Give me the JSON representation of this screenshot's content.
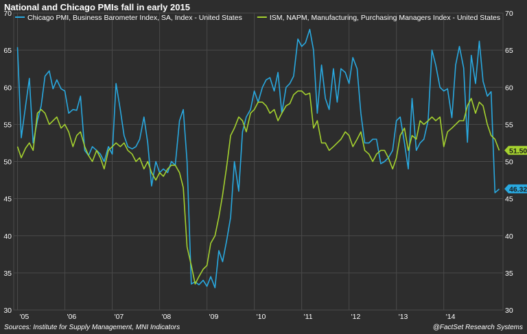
{
  "title": "National and Chicago PMIs fall in early 2015",
  "source": "Sources: Institute for Supply Management, MNI Indicators",
  "credit": "@FactSet Research Systems",
  "chart_data": {
    "type": "line",
    "xlim": [
      2004.92,
      2015.25
    ],
    "ylim": [
      30,
      70
    ],
    "y_ticks": [
      30,
      35,
      40,
      45,
      50,
      55,
      60,
      65,
      70
    ],
    "x_ticks": [
      {
        "label": "'05",
        "x": 2005.0
      },
      {
        "label": "'06",
        "x": 2006.0
      },
      {
        "label": "'07",
        "x": 2007.0
      },
      {
        "label": "'08",
        "x": 2008.0
      },
      {
        "label": "'09",
        "x": 2009.0
      },
      {
        "label": "'10",
        "x": 2010.0
      },
      {
        "label": "'11",
        "x": 2011.0
      },
      {
        "label": "'12",
        "x": 2012.0
      },
      {
        "label": "'13",
        "x": 2013.0
      },
      {
        "label": "'14",
        "x": 2014.0
      }
    ],
    "grid": true,
    "legend_position": "top-left",
    "series": [
      {
        "name": "Chicago PMI, Business Barometer Index, SA, Index - United States",
        "color": "#29a9e0",
        "end_label": "46.32",
        "points": [
          [
            2005.0,
            65.4
          ],
          [
            2005.08,
            53.2
          ],
          [
            2005.17,
            57.5
          ],
          [
            2005.25,
            61.2
          ],
          [
            2005.33,
            52.5
          ],
          [
            2005.42,
            55.5
          ],
          [
            2005.5,
            57.5
          ],
          [
            2005.58,
            61.5
          ],
          [
            2005.67,
            62.2
          ],
          [
            2005.75,
            59.8
          ],
          [
            2005.83,
            61.0
          ],
          [
            2005.92,
            59.8
          ],
          [
            2006.0,
            59.5
          ],
          [
            2006.08,
            56.5
          ],
          [
            2006.17,
            57.0
          ],
          [
            2006.25,
            56.9
          ],
          [
            2006.33,
            58.8
          ],
          [
            2006.42,
            51.5
          ],
          [
            2006.5,
            50.8
          ],
          [
            2006.58,
            52.0
          ],
          [
            2006.67,
            51.5
          ],
          [
            2006.75,
            51.0
          ],
          [
            2006.83,
            50.0
          ],
          [
            2006.92,
            52.0
          ],
          [
            2007.0,
            51.0
          ],
          [
            2007.08,
            60.5
          ],
          [
            2007.17,
            57.0
          ],
          [
            2007.25,
            53.5
          ],
          [
            2007.33,
            52.0
          ],
          [
            2007.42,
            51.7
          ],
          [
            2007.5,
            52.0
          ],
          [
            2007.58,
            53.0
          ],
          [
            2007.67,
            56.0
          ],
          [
            2007.75,
            52.5
          ],
          [
            2007.83,
            46.7
          ],
          [
            2007.92,
            50.0
          ],
          [
            2008.0,
            48.5
          ],
          [
            2008.08,
            49.0
          ],
          [
            2008.17,
            48.5
          ],
          [
            2008.25,
            50.0
          ],
          [
            2008.33,
            49.5
          ],
          [
            2008.42,
            55.5
          ],
          [
            2008.5,
            57.0
          ],
          [
            2008.58,
            50.0
          ],
          [
            2008.67,
            33.5
          ],
          [
            2008.75,
            33.8
          ],
          [
            2008.83,
            33.4
          ],
          [
            2008.92,
            34.0
          ],
          [
            2009.0,
            33.2
          ],
          [
            2009.08,
            34.5
          ],
          [
            2009.17,
            33.0
          ],
          [
            2009.25,
            38.0
          ],
          [
            2009.33,
            36.5
          ],
          [
            2009.42,
            39.5
          ],
          [
            2009.5,
            42.5
          ],
          [
            2009.58,
            50.0
          ],
          [
            2009.67,
            46.0
          ],
          [
            2009.75,
            54.0
          ],
          [
            2009.83,
            56.0
          ],
          [
            2009.92,
            57.0
          ],
          [
            2010.0,
            59.5
          ],
          [
            2010.08,
            58.0
          ],
          [
            2010.17,
            60.0
          ],
          [
            2010.25,
            61.0
          ],
          [
            2010.33,
            61.3
          ],
          [
            2010.42,
            59.5
          ],
          [
            2010.5,
            62.0
          ],
          [
            2010.58,
            56.5
          ],
          [
            2010.67,
            60.0
          ],
          [
            2010.75,
            60.5
          ],
          [
            2010.83,
            61.5
          ],
          [
            2010.92,
            66.5
          ],
          [
            2011.0,
            65.5
          ],
          [
            2011.08,
            66.0
          ],
          [
            2011.17,
            67.8
          ],
          [
            2011.25,
            65.0
          ],
          [
            2011.33,
            56.5
          ],
          [
            2011.42,
            63.0
          ],
          [
            2011.5,
            58.5
          ],
          [
            2011.58,
            57.0
          ],
          [
            2011.67,
            62.5
          ],
          [
            2011.75,
            58.0
          ],
          [
            2011.83,
            62.5
          ],
          [
            2011.92,
            62.0
          ],
          [
            2012.0,
            60.5
          ],
          [
            2012.08,
            64.0
          ],
          [
            2012.17,
            62.5
          ],
          [
            2012.25,
            56.5
          ],
          [
            2012.33,
            52.5
          ],
          [
            2012.42,
            52.5
          ],
          [
            2012.5,
            53.0
          ],
          [
            2012.58,
            53.0
          ],
          [
            2012.67,
            49.7
          ],
          [
            2012.75,
            50.0
          ],
          [
            2012.83,
            50.5
          ],
          [
            2012.92,
            51.5
          ],
          [
            2013.0,
            55.5
          ],
          [
            2013.08,
            56.0
          ],
          [
            2013.17,
            52.5
          ],
          [
            2013.25,
            49.0
          ],
          [
            2013.33,
            58.5
          ],
          [
            2013.42,
            51.5
          ],
          [
            2013.5,
            52.5
          ],
          [
            2013.58,
            53.0
          ],
          [
            2013.67,
            55.5
          ],
          [
            2013.75,
            65.0
          ],
          [
            2013.83,
            63.0
          ],
          [
            2013.92,
            60.0
          ],
          [
            2014.0,
            59.5
          ],
          [
            2014.08,
            59.8
          ],
          [
            2014.17,
            55.9
          ],
          [
            2014.25,
            63.0
          ],
          [
            2014.33,
            65.5
          ],
          [
            2014.42,
            62.6
          ],
          [
            2014.5,
            52.6
          ],
          [
            2014.58,
            64.3
          ],
          [
            2014.67,
            60.5
          ],
          [
            2014.75,
            66.2
          ],
          [
            2014.83,
            60.8
          ],
          [
            2014.92,
            58.8
          ],
          [
            2015.0,
            59.4
          ],
          [
            2015.08,
            45.8
          ],
          [
            2015.17,
            46.3
          ]
        ]
      },
      {
        "name": "ISM, NAPM, Manufacturing, Purchasing Managers Index - United States",
        "color": "#a5d22f",
        "end_label": "51.50",
        "points": [
          [
            2005.0,
            52.0
          ],
          [
            2005.08,
            50.5
          ],
          [
            2005.17,
            51.8
          ],
          [
            2005.25,
            52.5
          ],
          [
            2005.33,
            51.5
          ],
          [
            2005.42,
            56.5
          ],
          [
            2005.5,
            57.0
          ],
          [
            2005.58,
            56.5
          ],
          [
            2005.67,
            55.0
          ],
          [
            2005.75,
            55.5
          ],
          [
            2005.83,
            56.0
          ],
          [
            2005.92,
            54.5
          ],
          [
            2006.0,
            55.0
          ],
          [
            2006.08,
            54.0
          ],
          [
            2006.17,
            52.0
          ],
          [
            2006.25,
            53.5
          ],
          [
            2006.33,
            54.0
          ],
          [
            2006.42,
            52.0
          ],
          [
            2006.5,
            50.8
          ],
          [
            2006.58,
            50.0
          ],
          [
            2006.67,
            51.5
          ],
          [
            2006.75,
            50.5
          ],
          [
            2006.83,
            49.0
          ],
          [
            2006.92,
            51.5
          ],
          [
            2007.0,
            52.0
          ],
          [
            2007.08,
            52.5
          ],
          [
            2007.17,
            52.0
          ],
          [
            2007.25,
            52.5
          ],
          [
            2007.33,
            51.5
          ],
          [
            2007.42,
            51.0
          ],
          [
            2007.5,
            50.0
          ],
          [
            2007.58,
            50.5
          ],
          [
            2007.67,
            49.0
          ],
          [
            2007.75,
            50.0
          ],
          [
            2007.83,
            48.5
          ],
          [
            2007.92,
            47.5
          ],
          [
            2008.0,
            48.5
          ],
          [
            2008.08,
            48.0
          ],
          [
            2008.17,
            49.0
          ],
          [
            2008.25,
            49.5
          ],
          [
            2008.33,
            49.5
          ],
          [
            2008.42,
            48.5
          ],
          [
            2008.5,
            46.5
          ],
          [
            2008.58,
            38.5
          ],
          [
            2008.67,
            36.0
          ],
          [
            2008.75,
            33.5
          ],
          [
            2008.83,
            34.5
          ],
          [
            2008.92,
            35.5
          ],
          [
            2009.0,
            36.0
          ],
          [
            2009.08,
            39.0
          ],
          [
            2009.17,
            40.0
          ],
          [
            2009.25,
            42.5
          ],
          [
            2009.33,
            45.5
          ],
          [
            2009.42,
            49.5
          ],
          [
            2009.5,
            53.5
          ],
          [
            2009.58,
            54.5
          ],
          [
            2009.67,
            56.0
          ],
          [
            2009.75,
            55.5
          ],
          [
            2009.83,
            54.0
          ],
          [
            2009.92,
            56.5
          ],
          [
            2010.0,
            57.0
          ],
          [
            2010.08,
            58.0
          ],
          [
            2010.17,
            58.0
          ],
          [
            2010.25,
            57.5
          ],
          [
            2010.33,
            56.5
          ],
          [
            2010.42,
            57.0
          ],
          [
            2010.5,
            55.5
          ],
          [
            2010.58,
            56.5
          ],
          [
            2010.67,
            57.5
          ],
          [
            2010.75,
            57.8
          ],
          [
            2010.83,
            59.0
          ],
          [
            2010.92,
            59.5
          ],
          [
            2011.0,
            59.5
          ],
          [
            2011.08,
            59.0
          ],
          [
            2011.17,
            59.2
          ],
          [
            2011.25,
            54.5
          ],
          [
            2011.33,
            55.5
          ],
          [
            2011.42,
            52.5
          ],
          [
            2011.5,
            52.5
          ],
          [
            2011.58,
            51.5
          ],
          [
            2011.67,
            52.0
          ],
          [
            2011.75,
            52.5
          ],
          [
            2011.83,
            53.0
          ],
          [
            2011.92,
            54.0
          ],
          [
            2012.0,
            53.5
          ],
          [
            2012.08,
            52.0
          ],
          [
            2012.17,
            53.0
          ],
          [
            2012.25,
            54.0
          ],
          [
            2012.33,
            51.5
          ],
          [
            2012.42,
            51.0
          ],
          [
            2012.5,
            50.0
          ],
          [
            2012.58,
            51.0
          ],
          [
            2012.67,
            51.5
          ],
          [
            2012.75,
            51.5
          ],
          [
            2012.83,
            50.5
          ],
          [
            2012.92,
            49.0
          ],
          [
            2013.0,
            50.5
          ],
          [
            2013.08,
            53.5
          ],
          [
            2013.17,
            54.5
          ],
          [
            2013.25,
            51.5
          ],
          [
            2013.33,
            53.5
          ],
          [
            2013.42,
            53.0
          ],
          [
            2013.5,
            55.5
          ],
          [
            2013.58,
            55.0
          ],
          [
            2013.67,
            55.5
          ],
          [
            2013.75,
            56.0
          ],
          [
            2013.83,
            55.5
          ],
          [
            2013.92,
            56.0
          ],
          [
            2014.0,
            52.0
          ],
          [
            2014.08,
            54.0
          ],
          [
            2014.17,
            54.5
          ],
          [
            2014.25,
            55.0
          ],
          [
            2014.33,
            55.5
          ],
          [
            2014.42,
            55.5
          ],
          [
            2014.5,
            57.5
          ],
          [
            2014.58,
            58.5
          ],
          [
            2014.67,
            56.5
          ],
          [
            2014.75,
            58.0
          ],
          [
            2014.83,
            57.5
          ],
          [
            2014.92,
            55.0
          ],
          [
            2015.0,
            53.5
          ],
          [
            2015.08,
            53.0
          ],
          [
            2015.17,
            51.5
          ]
        ]
      }
    ]
  }
}
